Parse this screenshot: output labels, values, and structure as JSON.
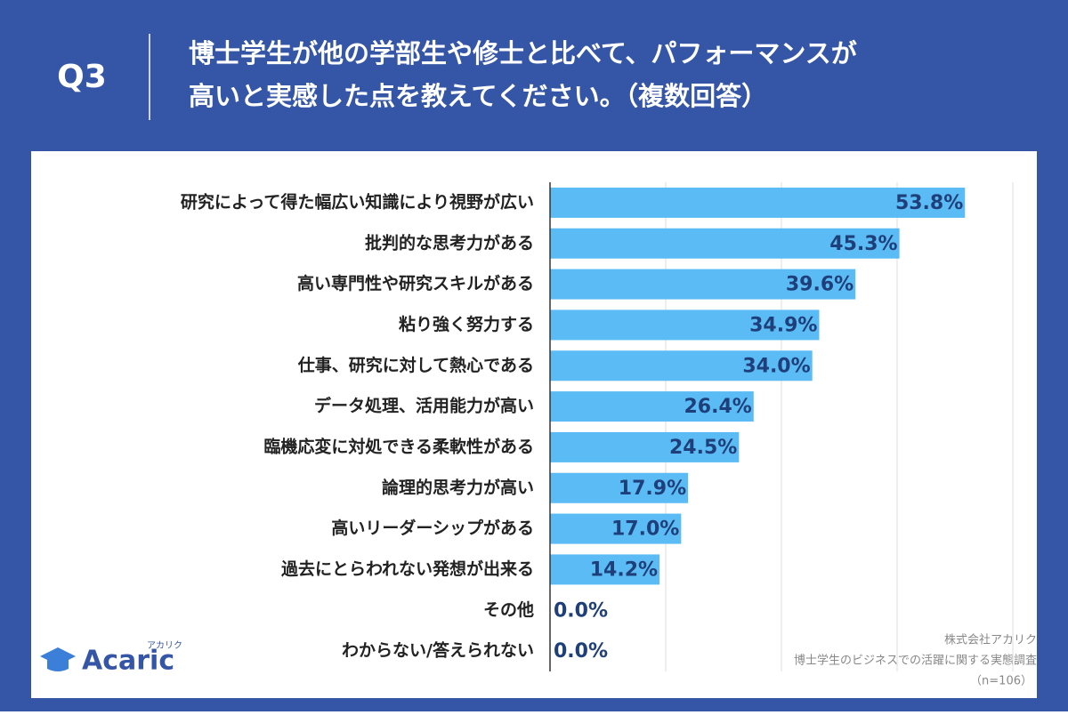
{
  "chart_data": {
    "type": "hbar",
    "question": "Q3",
    "title": [
      "博士学生が他の学部生や修士と比べて、パフォーマンスが",
      "高いと実感した点を教えてください。（複数回答）"
    ],
    "categories": [
      "研究によって得た幅広い知識により視野が広い",
      "批判的な思考力がある",
      "高い専門性や研究スキルがある",
      "粘り強く努力する",
      "仕事、研究に対して熱心である",
      "データ処理、活用能力が高い",
      "臨機応変に対処できる柔軟性がある",
      "論理的思考力が高い",
      "高いリーダーシップがある",
      "過去にとらわれない発想が出来る",
      "その他",
      "わからない/答えられない"
    ],
    "values": [
      53.8,
      45.3,
      39.6,
      34.9,
      34.0,
      26.4,
      24.5,
      17.9,
      17.0,
      14.2,
      0.0,
      0.0
    ],
    "value_labels": [
      "53.8%",
      "45.3%",
      "39.6%",
      "34.9%",
      "34.0%",
      "26.4%",
      "24.5%",
      "17.9%",
      "17.0%",
      "14.2%",
      "0.0%",
      "0.0%"
    ],
    "color": "#5bbcf5",
    "xlim": [
      0,
      60
    ],
    "xticks": [
      0,
      15,
      30,
      45,
      60
    ],
    "grid": true,
    "logo": "Acaric",
    "logo_ruby": "アカリク",
    "source": [
      "株式会社アカリク",
      "博士学生のビジネスでの活躍に関する実態調査",
      "（n=106）"
    ]
  }
}
